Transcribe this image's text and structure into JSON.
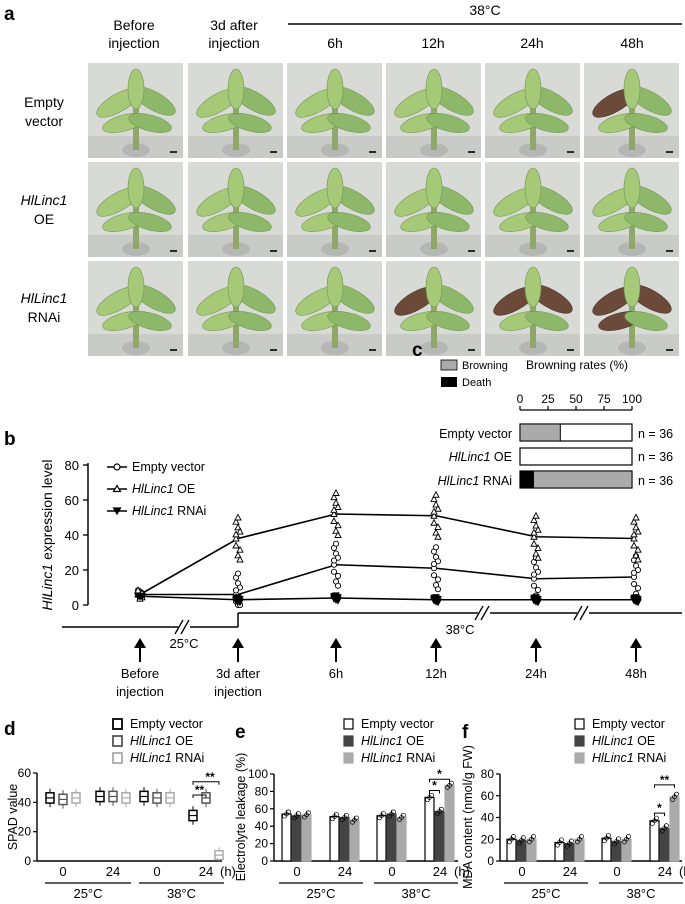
{
  "panel_letters": {
    "a": "a",
    "b": "b",
    "c": "c",
    "d": "d",
    "e": "e",
    "f": "f"
  },
  "panel_a": {
    "temp_label": "38°C",
    "columns": [
      {
        "line1": "Before",
        "line2": "injection"
      },
      {
        "line1": "3d after",
        "line2": "injection"
      },
      {
        "line1": "6h"
      },
      {
        "line1": "12h"
      },
      {
        "line1": "24h"
      },
      {
        "line1": "48h"
      }
    ],
    "rows": [
      {
        "line1": "Empty",
        "line2": "vector"
      },
      {
        "line1": "HlLinc1",
        "line2": "OE"
      },
      {
        "line1": "HlLinc1",
        "line2": "RNAi"
      }
    ]
  },
  "legend": {
    "empty": "Empty vector",
    "gene": "HlLinc1",
    "oe": " OE",
    "rnai": " RNAi",
    "browning": "Browning",
    "death": "Death"
  },
  "panel_b": {
    "ylabel_gene": "HlLinc1",
    "ylabel_rest": " expression level",
    "temp_low": "25°C",
    "temp_high": "38°C",
    "timepoints": [
      {
        "line1": "Before",
        "line2": "injection"
      },
      {
        "line1": "3d after",
        "line2": "injection"
      },
      {
        "line1": "6h"
      },
      {
        "line1": "12h"
      },
      {
        "line1": "24h"
      },
      {
        "line1": "48h"
      }
    ]
  },
  "panel_c": {
    "title": "Browning rates (%)",
    "rows": [
      {
        "prefix": "Empty vector",
        "gene": "",
        "suffix": "",
        "n": "n = 36"
      },
      {
        "prefix": "",
        "gene": "HlLinc1",
        "suffix": " OE",
        "n": "n = 36"
      },
      {
        "prefix": "",
        "gene": "HlLinc1",
        "suffix": " RNAi",
        "n": "n = 36"
      }
    ]
  },
  "panel_d": {
    "ylabel": "SPAD value"
  },
  "panel_e": {
    "ylabel": "Electrolyte leakage (%)"
  },
  "panel_f": {
    "ylabel": "MDA content (nmol/g FW)"
  },
  "shared_x": {
    "t0": "0",
    "t24": "24",
    "unit": "(h)",
    "low": "25°C",
    "high": "38°C"
  },
  "significance": {
    "one": "*",
    "two": "**"
  },
  "chart_data": [
    {
      "id": "b",
      "type": "line",
      "ylabel": "HlLinc1 expression level",
      "ylim": [
        0,
        80
      ],
      "yticks": [
        0,
        20,
        40,
        60,
        80
      ],
      "categories": [
        "Before injection",
        "3d after injection",
        "6h",
        "12h",
        "24h",
        "48h"
      ],
      "series": [
        {
          "name": "Empty vector",
          "marker": "circle",
          "values": [
            6,
            6,
            23,
            21,
            15,
            16
          ]
        },
        {
          "name": "HlLinc1 OE",
          "marker": "triangle-up",
          "values": [
            6,
            38,
            52,
            51,
            39,
            38
          ]
        },
        {
          "name": "HlLinc1 RNAi",
          "marker": "triangle-down",
          "values": [
            5,
            3,
            4,
            3,
            3,
            3
          ]
        }
      ]
    },
    {
      "id": "c",
      "type": "bar",
      "orientation": "horizontal",
      "title": "Browning rates (%)",
      "xlim": [
        0,
        100
      ],
      "xticks": [
        0,
        25,
        50,
        75,
        100
      ],
      "categories": [
        "Empty vector",
        "HlLinc1 OE",
        "HlLinc1 RNAi"
      ],
      "series": [
        {
          "name": "Death",
          "values": [
            0,
            0,
            12
          ]
        },
        {
          "name": "Browning",
          "values": [
            36,
            0,
            88
          ]
        }
      ]
    },
    {
      "id": "d",
      "type": "box",
      "ylabel": "SPAD value",
      "ylim": [
        0,
        60
      ],
      "yticks": [
        0,
        20,
        40,
        60
      ],
      "categories": [
        "25°C 0 h",
        "25°C 24 h",
        "38°C 0 h",
        "38°C 24 h"
      ],
      "series": [
        {
          "name": "Empty vector",
          "medians": [
            43,
            44,
            44,
            31
          ]
        },
        {
          "name": "HlLinc1 OE",
          "medians": [
            42,
            44,
            43,
            43
          ]
        },
        {
          "name": "HlLinc1 RNAi",
          "medians": [
            43,
            43,
            43,
            4
          ]
        }
      ]
    },
    {
      "id": "e",
      "type": "bar",
      "ylabel": "Electrolyte leakage (%)",
      "ylim": [
        0,
        100
      ],
      "yticks": [
        0,
        20,
        40,
        60,
        80,
        100
      ],
      "categories": [
        "25°C 0 h",
        "25°C 24 h",
        "38°C 0 h",
        "38°C 24 h"
      ],
      "series": [
        {
          "name": "Empty vector",
          "values": [
            54,
            51,
            52,
            73
          ]
        },
        {
          "name": "HlLinc1 OE",
          "values": [
            52,
            50,
            54,
            57
          ]
        },
        {
          "name": "HlLinc1 RNAi",
          "values": [
            53,
            47,
            50,
            87
          ]
        }
      ]
    },
    {
      "id": "f",
      "type": "bar",
      "ylabel": "MDA content (nmol/g FW)",
      "ylim": [
        0,
        80
      ],
      "yticks": [
        0,
        20,
        40,
        60,
        80
      ],
      "categories": [
        "25°C 0 h",
        "25°C 24 h",
        "38°C 0 h",
        "38°C 24 h"
      ],
      "series": [
        {
          "name": "Empty vector",
          "values": [
            20,
            17,
            21,
            37
          ]
        },
        {
          "name": "HlLinc1 OE",
          "values": [
            19,
            16,
            18,
            30
          ]
        },
        {
          "name": "HlLinc1 RNAi",
          "values": [
            20,
            20,
            20,
            59
          ]
        }
      ]
    }
  ]
}
